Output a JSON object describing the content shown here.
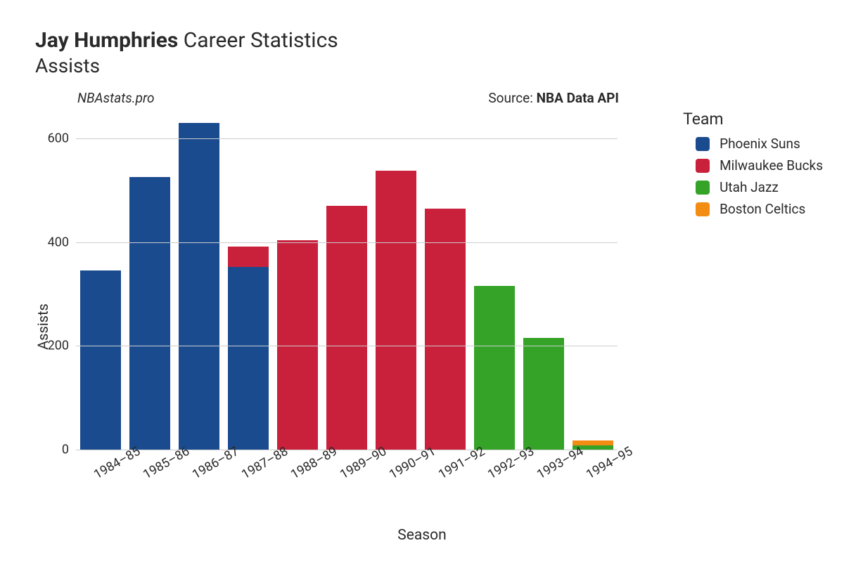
{
  "title_bold": "Jay Humphries",
  "title_rest": " Career Statistics",
  "subtitle": "Assists",
  "credit": "NBAstats.pro",
  "source_prefix": "Source: ",
  "source_name": "NBA Data API",
  "ylabel": "Assists",
  "xlabel": "Season",
  "legend_title": "Team",
  "chart": {
    "type": "bar-stacked",
    "ylim": [
      0,
      650
    ],
    "yticks": [
      0,
      200,
      400,
      600
    ],
    "grid_color": "#cccccc",
    "background_color": "#ffffff",
    "bar_width_ratio": 0.82,
    "label_fontsize": 18,
    "axis_label_fontsize": 20,
    "title_fontsize": 30,
    "tick_rotation_deg": -30,
    "seasons": [
      "1984–85",
      "1985–86",
      "1986–87",
      "1987–88",
      "1988–89",
      "1989–90",
      "1990–91",
      "1991–92",
      "1992–93",
      "1993–94",
      "1994–95"
    ],
    "teams": [
      {
        "name": "Phoenix Suns",
        "color": "#1a4b8f"
      },
      {
        "name": "Milwaukee Bucks",
        "color": "#c9203b"
      },
      {
        "name": "Utah Jazz",
        "color": "#34a328"
      },
      {
        "name": "Boston Celtics",
        "color": "#f28c13"
      }
    ],
    "data": [
      [
        {
          "team": 0,
          "value": 345
        }
      ],
      [
        {
          "team": 0,
          "value": 525
        }
      ],
      [
        {
          "team": 0,
          "value": 630
        }
      ],
      [
        {
          "team": 0,
          "value": 352
        },
        {
          "team": 1,
          "value": 40
        }
      ],
      [
        {
          "team": 1,
          "value": 403
        }
      ],
      [
        {
          "team": 1,
          "value": 470
        }
      ],
      [
        {
          "team": 1,
          "value": 538
        }
      ],
      [
        {
          "team": 1,
          "value": 465
        }
      ],
      [
        {
          "team": 2,
          "value": 315
        }
      ],
      [
        {
          "team": 2,
          "value": 215
        }
      ],
      [
        {
          "team": 2,
          "value": 8
        },
        {
          "team": 3,
          "value": 10
        }
      ]
    ]
  }
}
